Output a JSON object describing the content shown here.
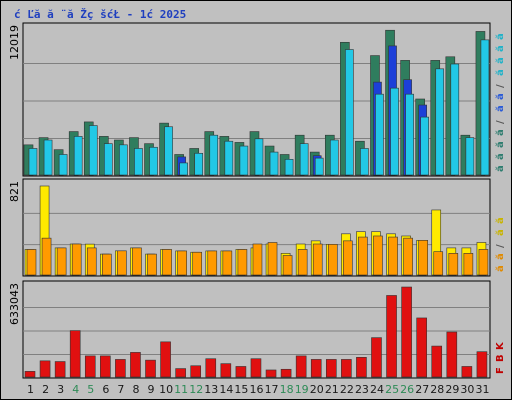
{
  "chart_data": {
    "type": "bar",
    "title": "ć Ľă  ă ¨ă Žç šćŁ  - 1ć   2025",
    "categories": [
      "1",
      "2",
      "3",
      "4",
      "5",
      "6",
      "7",
      "8",
      "9",
      "10",
      "11",
      "12",
      "13",
      "14",
      "15",
      "16",
      "17",
      "18",
      "19",
      "20",
      "21",
      "22",
      "23",
      "24",
      "25",
      "26",
      "27",
      "28",
      "29",
      "30",
      "31"
    ],
    "weekend_days": [
      "4",
      "5",
      "11",
      "12",
      "18",
      "19",
      "25",
      "26"
    ],
    "weekend_color": "#2e8b57",
    "weekday_color": "#1a1a1a",
    "panels": [
      {
        "id": "top",
        "max_label": "12019",
        "ymax": 12019,
        "gridlines": 4,
        "side_labels": [
          {
            "text": "ă ",
            "color": "#2e7d6f"
          },
          {
            "text": "ă ",
            "color": "#2e7d6f"
          },
          {
            "text": "ă ",
            "color": "#2e7d6f"
          },
          {
            "text": "ă ",
            "color": "#2e7d6f"
          },
          {
            "text": "/",
            "color": "#555555"
          },
          {
            "text": "ă ",
            "color": "#2a5bd7"
          },
          {
            "text": "ă ",
            "color": "#2a5bd7"
          },
          {
            "text": "/",
            "color": "#555555"
          },
          {
            "text": "ă ",
            "color": "#20b2c8"
          },
          {
            "text": "ă ",
            "color": "#20b2c8"
          },
          {
            "text": "ă ",
            "color": "#20b2c8"
          },
          {
            "text": "ă ",
            "color": "#20b2c8"
          }
        ],
        "series": [
          {
            "name": "",
            "color": "#2f7d5e",
            "values": [
              2500,
              3100,
              2100,
              3600,
              4400,
              3200,
              2900,
              3100,
              2600,
              4300,
              1700,
              2200,
              3600,
              3200,
              2700,
              3600,
              2400,
              1700,
              3300,
              1900,
              3300,
              11000,
              2800,
              9900,
              12000,
              9500,
              6300,
              9500,
              9800,
              3300,
              11900
            ]
          },
          {
            "name": "",
            "color": "#1c3fd8",
            "values": [
              0,
              0,
              0,
              0,
              0,
              0,
              0,
              0,
              0,
              0,
              1500,
              0,
              0,
              0,
              0,
              0,
              0,
              0,
              0,
              1600,
              0,
              0,
              0,
              7700,
              10700,
              7900,
              5800,
              0,
              0,
              0,
              0
            ]
          },
          {
            "name": "",
            "color": "#22c8e6",
            "values": [
              2200,
              2900,
              1700,
              3200,
              4100,
              2600,
              2500,
              2200,
              2300,
              4000,
              1000,
              1800,
              3300,
              2800,
              2400,
              3000,
              1900,
              1300,
              2600,
              1400,
              2900,
              10400,
              2200,
              6700,
              7200,
              6700,
              4800,
              8800,
              9200,
              3100,
              11200
            ]
          }
        ]
      },
      {
        "id": "middle",
        "max_label": "821",
        "ymax": 821,
        "gridlines": 3,
        "side_labels": [
          {
            "text": "ă ",
            "color": "#e08a00"
          },
          {
            "text": "ă ",
            "color": "#e08a00"
          },
          {
            "text": "/",
            "color": "#555555"
          },
          {
            "text": "ă ",
            "color": "#c8b400"
          },
          {
            "text": "ă ",
            "color": "#c8b400"
          }
        ],
        "series": [
          {
            "name": "",
            "color": "#ffea00",
            "values": [
              236,
              821,
              250,
              286,
              285,
              193,
              223,
              250,
              193,
              236,
              222,
              210,
              222,
              222,
              236,
              250,
              286,
              200,
              286,
              315,
              283,
              380,
              400,
              400,
              380,
              360,
              320,
              600,
              250,
              250,
              300
            ]
          },
          {
            "name": "",
            "color": "#ff9a00",
            "values": [
              236,
              340,
              250,
              286,
              250,
              193,
              223,
              250,
              193,
              236,
              222,
              210,
              222,
              222,
              236,
              286,
              300,
              180,
              236,
              286,
              283,
              315,
              350,
              360,
              350,
              340,
              320,
              215,
              200,
              200,
              236
            ]
          }
        ]
      },
      {
        "id": "bottom",
        "max_label": "633043",
        "ymax": 633043,
        "gridlines": 4,
        "side_labels": [
          {
            "text": "F",
            "color": "#c00000"
          },
          {
            "text": "B",
            "color": "#c00000"
          },
          {
            "text": "K",
            "color": "#c00000"
          }
        ],
        "series": [
          {
            "name": "",
            "color": "#e01010",
            "values": [
              40000,
              115000,
              110000,
              330000,
              150000,
              150000,
              125000,
              175000,
              120000,
              250000,
              60000,
              80000,
              130000,
              95000,
              75000,
              130000,
              50000,
              55000,
              150000,
              125000,
              125000,
              125000,
              140000,
              280000,
              580000,
              640000,
              420000,
              220000,
              320000,
              75000,
              180000
            ]
          }
        ]
      }
    ]
  }
}
